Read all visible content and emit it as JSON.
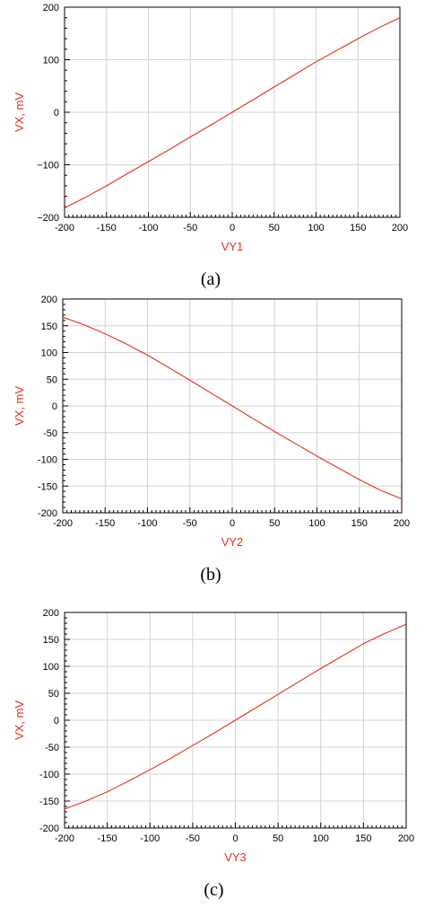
{
  "colors": {
    "series": "#e03020",
    "axis_label": "#e03020",
    "grid": "#d4d4d4",
    "frame": "#000000",
    "tick_text": "#000000"
  },
  "chart_data": [
    {
      "type": "line",
      "panel_label": "(a)",
      "xlabel": "VY1",
      "ylabel": "VX, mV",
      "xlim": [
        -200,
        200
      ],
      "ylim": [
        -200,
        200
      ],
      "xticks": [
        -200,
        -150,
        -100,
        -50,
        0,
        50,
        100,
        150,
        200
      ],
      "yticks": [
        -200,
        -100,
        0,
        100,
        200
      ],
      "xtick_labels": [
        "-200",
        "-150",
        "-100",
        "-50",
        "0",
        "50",
        "100",
        "150",
        "200"
      ],
      "ytick_labels": [
        "−200",
        "−100",
        "0",
        "100",
        "200"
      ],
      "grid": true,
      "series": [
        {
          "x": [
            -200,
            -175,
            -150,
            -125,
            -100,
            -75,
            -50,
            -25,
            0,
            25,
            50,
            75,
            100,
            125,
            150,
            175,
            200
          ],
          "y": [
            -182,
            -162,
            -140,
            -117,
            -94,
            -71,
            -47,
            -24,
            0,
            24,
            48,
            72,
            96,
            118,
            140,
            161,
            180
          ]
        }
      ]
    },
    {
      "type": "line",
      "panel_label": "(b)",
      "xlabel": "VY2",
      "ylabel": "VX, mV",
      "xlim": [
        -200,
        200
      ],
      "ylim": [
        -200,
        200
      ],
      "xticks": [
        -200,
        -150,
        -100,
        -50,
        0,
        50,
        100,
        150,
        200
      ],
      "yticks": [
        -200,
        -150,
        -100,
        -50,
        0,
        50,
        100,
        150,
        200
      ],
      "xtick_labels": [
        "-200",
        "-150",
        "-100",
        "-50",
        "0",
        "50",
        "100",
        "150",
        "200"
      ],
      "ytick_labels": [
        "-200",
        "-150",
        "-100",
        "-50",
        "0",
        "50",
        "100",
        "150",
        "200"
      ],
      "grid": true,
      "series": [
        {
          "x": [
            -200,
            -175,
            -150,
            -125,
            -100,
            -75,
            -50,
            -25,
            0,
            25,
            50,
            75,
            100,
            125,
            150,
            175,
            200
          ],
          "y": [
            166,
            152,
            135,
            116,
            95,
            72,
            48,
            24,
            0,
            -24,
            -48,
            -71,
            -94,
            -116,
            -138,
            -158,
            -174
          ]
        }
      ]
    },
    {
      "type": "line",
      "panel_label": "(c)",
      "xlabel": "VY3",
      "ylabel": "VX, mV",
      "xlim": [
        -200,
        200
      ],
      "ylim": [
        -200,
        200
      ],
      "xticks": [
        -200,
        -150,
        -100,
        -50,
        0,
        50,
        100,
        150,
        200
      ],
      "yticks": [
        -200,
        -150,
        -100,
        -50,
        0,
        50,
        100,
        150,
        200
      ],
      "xtick_labels": [
        "-200",
        "-150",
        "-100",
        "-50",
        "0",
        "50",
        "100",
        "150",
        "200"
      ],
      "ytick_labels": [
        "-200",
        "-150",
        "-100",
        "-50",
        "0",
        "50",
        "100",
        "150",
        "200"
      ],
      "grid": true,
      "series": [
        {
          "x": [
            -200,
            -175,
            -150,
            -125,
            -100,
            -75,
            -50,
            -25,
            0,
            25,
            50,
            75,
            100,
            125,
            150,
            175,
            200
          ],
          "y": [
            -165,
            -150,
            -133,
            -113,
            -92,
            -70,
            -47,
            -24,
            0,
            24,
            48,
            72,
            96,
            119,
            142,
            161,
            178
          ]
        }
      ]
    }
  ]
}
